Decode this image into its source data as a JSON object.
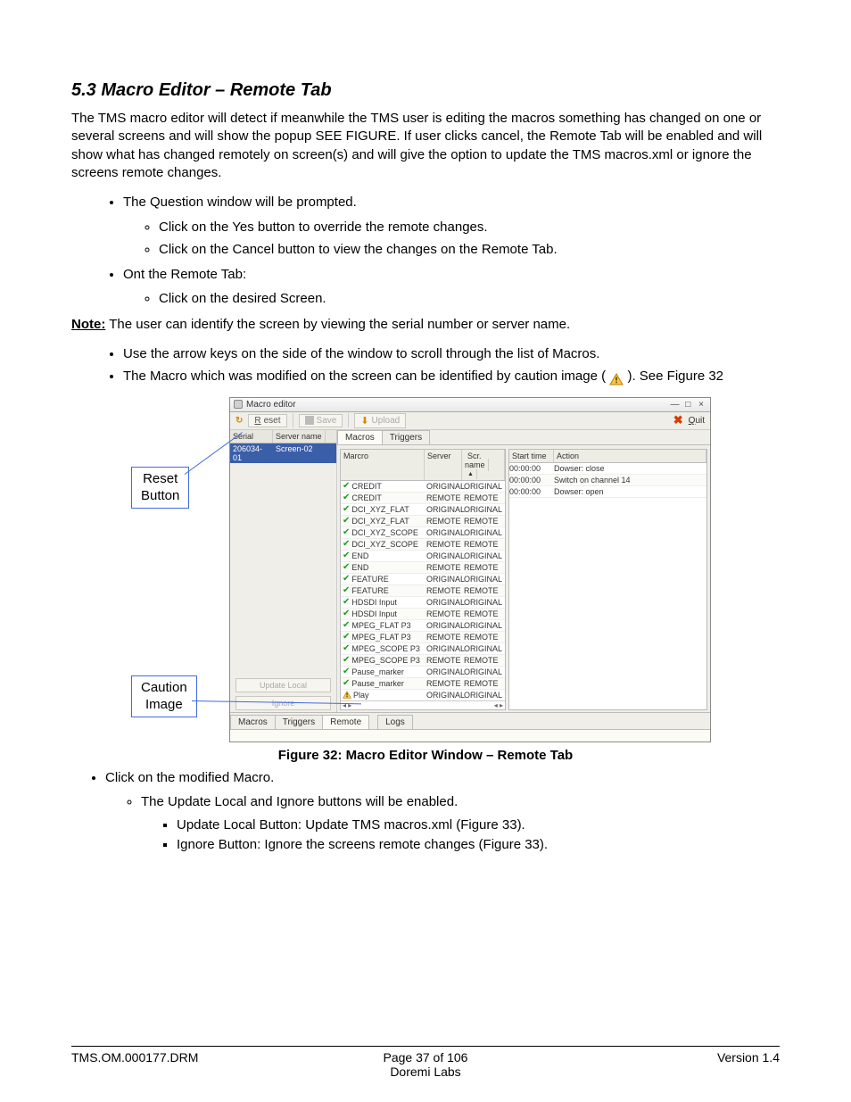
{
  "heading": "5.3 Macro Editor – Remote Tab",
  "intro": "The TMS macro editor will detect if meanwhile the TMS user is editing the macros something has changed on one or several screens and will show the popup SEE FIGURE. If user clicks cancel, the Remote Tab will be enabled and will show what has changed remotely on screen(s) and will give the option to update the TMS macros.xml or ignore the screens remote changes.",
  "bullet1": "The Question window will be prompted.",
  "bullet1a": "Click on the Yes button to override the remote changes.",
  "bullet1b": "Click on the Cancel button to view the changes on the Remote Tab.",
  "bullet2": "Ont the Remote Tab:",
  "bullet2a": "Click on the desired Screen.",
  "note_label": "Note:",
  "note_text": " The user can identify the screen by viewing the serial number or server name.",
  "bullet3": "Use the arrow keys on the side of the window to scroll through the list of Macros.",
  "bullet4a": "The Macro which was modified on the screen can be identified by caution image ( ",
  "bullet4b": " ). See Figure 32",
  "callout_reset": "Reset\nButton",
  "callout_caution": "Caution\nImage",
  "caption": "Figure 32: Macro Editor Window – Remote Tab",
  "post1": "Click on the modified Macro.",
  "post1a": "The Update Local and Ignore buttons will be enabled.",
  "post1a1": "Update Local Button: Update TMS macros.xml (Figure 33).",
  "post1a2": "Ignore Button: Ignore the screens remote changes (Figure 33).",
  "footer_left": "TMS.OM.000177.DRM",
  "footer_center1": "Page 37 of 106",
  "footer_center2": "Doremi Labs",
  "footer_right": "Version 1.4",
  "colors": {
    "callout_border": "#4169e1",
    "check": "#1a9e1a",
    "warn_fill": "#f7c948",
    "warn_border": "#c07c00",
    "sel_row": "#3a5ea8",
    "quit_x": "#d93a00"
  },
  "win": {
    "title": "Macro editor",
    "toolbar": {
      "reset": "Reset",
      "save": "Save",
      "upload": "Upload",
      "quit": "Quit"
    },
    "left": {
      "hdr_serial": "Serial",
      "hdr_server": "Server name",
      "row_serial": "206034-01",
      "row_server": "Screen-02",
      "update_local": "Update Local",
      "ignore": "Ignore"
    },
    "tabs_top": {
      "macros": "Macros",
      "triggers": "Triggers"
    },
    "macro_hdr": {
      "m": "Marcro",
      "s": "Server",
      "n": "Scr. name"
    },
    "macros": [
      {
        "icon": "check",
        "name": "CREDIT",
        "server": "ORIGINAL",
        "scr": "ORIGINAL"
      },
      {
        "icon": "check",
        "name": "CREDIT",
        "server": "REMOTE",
        "scr": "REMOTE"
      },
      {
        "icon": "check",
        "name": "DCI_XYZ_FLAT",
        "server": "ORIGINAL",
        "scr": "ORIGINAL"
      },
      {
        "icon": "check",
        "name": "DCI_XYZ_FLAT",
        "server": "REMOTE",
        "scr": "REMOTE"
      },
      {
        "icon": "check",
        "name": "DCI_XYZ_SCOPE",
        "server": "ORIGINAL",
        "scr": "ORIGINAL"
      },
      {
        "icon": "check",
        "name": "DCI_XYZ_SCOPE",
        "server": "REMOTE",
        "scr": "REMOTE"
      },
      {
        "icon": "check",
        "name": "END",
        "server": "ORIGINAL",
        "scr": "ORIGINAL"
      },
      {
        "icon": "check",
        "name": "END",
        "server": "REMOTE",
        "scr": "REMOTE"
      },
      {
        "icon": "check",
        "name": "FEATURE",
        "server": "ORIGINAL",
        "scr": "ORIGINAL"
      },
      {
        "icon": "check",
        "name": "FEATURE",
        "server": "REMOTE",
        "scr": "REMOTE"
      },
      {
        "icon": "check",
        "name": "HDSDI Input",
        "server": "ORIGINAL",
        "scr": "ORIGINAL"
      },
      {
        "icon": "check",
        "name": "HDSDI Input",
        "server": "REMOTE",
        "scr": "REMOTE"
      },
      {
        "icon": "check",
        "name": "MPEG_FLAT P3",
        "server": "ORIGINAL",
        "scr": "ORIGINAL"
      },
      {
        "icon": "check",
        "name": "MPEG_FLAT P3",
        "server": "REMOTE",
        "scr": "REMOTE"
      },
      {
        "icon": "check",
        "name": "MPEG_SCOPE P3",
        "server": "ORIGINAL",
        "scr": "ORIGINAL"
      },
      {
        "icon": "check",
        "name": "MPEG_SCOPE P3",
        "server": "REMOTE",
        "scr": "REMOTE"
      },
      {
        "icon": "check",
        "name": "Pause_marker",
        "server": "ORIGINAL",
        "scr": "ORIGINAL"
      },
      {
        "icon": "check",
        "name": "Pause_marker",
        "server": "REMOTE",
        "scr": "REMOTE"
      },
      {
        "icon": "warn",
        "name": "Play",
        "server": "ORIGINAL",
        "scr": "ORIGINAL"
      }
    ],
    "side_hdr": {
      "t": "Start time",
      "a": "Action"
    },
    "side_rows": [
      {
        "t": "00:00:00",
        "a": "Dowser: close"
      },
      {
        "t": "00:00:00",
        "a": "Switch on channel 14"
      },
      {
        "t": "00:00:00",
        "a": "Dowser: open"
      }
    ],
    "bottom_tabs": {
      "macros": "Macros",
      "triggers": "Triggers",
      "remote": "Remote",
      "logs": "Logs"
    }
  }
}
